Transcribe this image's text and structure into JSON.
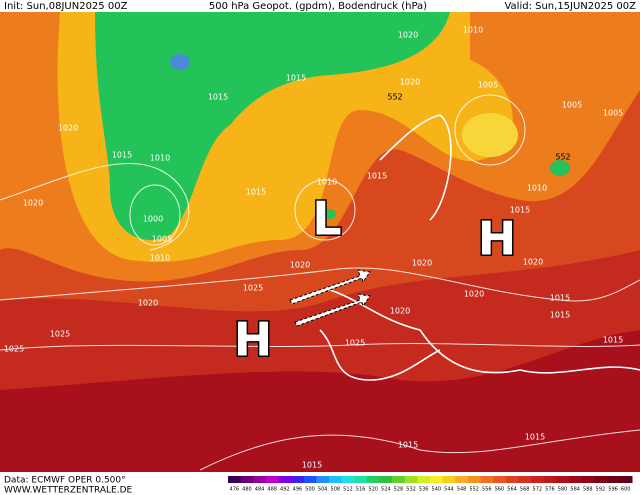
{
  "header": {
    "init": "Init: Sun,08JUN2025 00Z",
    "title": "500 hPa Geopot. (gpdm), Bodendruck (hPa)",
    "valid": "Valid: Sun,15JUN2025 00Z"
  },
  "map": {
    "systems": [
      "H",
      "L",
      "H"
    ],
    "pressure_labels": [
      1020,
      1010,
      1015,
      1020,
      1015,
      1005,
      1005,
      1005,
      1020,
      1015,
      1010,
      1010,
      1015,
      1015,
      1010,
      1020,
      1000,
      1005,
      1015,
      1010,
      1020,
      1020,
      1020,
      1025,
      1020,
      1020,
      1015,
      1020,
      1015,
      1025,
      1025,
      1025,
      1015,
      1015,
      1015,
      1015
    ],
    "geopotential_labels": [
      552,
      552
    ]
  },
  "colorbar": {
    "labels": [
      476,
      480,
      484,
      488,
      492,
      496,
      500,
      504,
      508,
      512,
      516,
      520,
      524,
      528,
      532,
      536,
      540,
      544,
      548,
      552,
      556,
      560,
      564,
      568,
      572,
      576,
      580,
      584,
      588,
      592,
      596,
      600
    ]
  },
  "footer": {
    "source": "Data: ECMWF OPER 0.500°",
    "site": "WWW.WETTERZENTRALE.DE"
  }
}
